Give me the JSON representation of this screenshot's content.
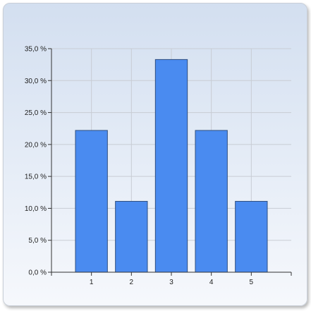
{
  "chart_data": {
    "type": "bar",
    "title": "",
    "xlabel": "",
    "ylabel": "",
    "categories": [
      "1",
      "2",
      "3",
      "4",
      "5"
    ],
    "values": [
      22.2,
      11.1,
      33.3,
      22.2,
      11.1
    ],
    "ylim": [
      0,
      35
    ],
    "y_ticks": [
      "0,0 %",
      "5,0 %",
      "10,0 %",
      "15,0 %",
      "20,0 %",
      "25,0 %",
      "30,0 %",
      "35,0 %"
    ],
    "grid": true,
    "legend": "none"
  },
  "colors": {
    "bar_fill": "#4a8bf0",
    "bar_stroke": "#2f4f7f",
    "grid": "#c8ccd4",
    "axis": "#333333"
  }
}
